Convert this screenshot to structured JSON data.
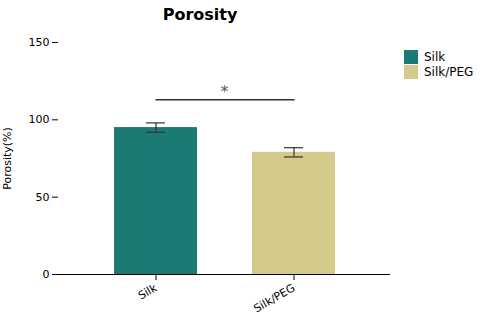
{
  "chart_data": {
    "type": "bar",
    "title": "Porosity",
    "ylabel": "Porosity(%)",
    "categories": [
      "Silk",
      "Silk/PEG"
    ],
    "values": [
      95.0,
      79.0
    ],
    "errors": [
      3.0,
      3.0
    ],
    "colors": [
      "#1b7b74",
      "#d4ca8c"
    ],
    "ylim": [
      0,
      150
    ],
    "yticks": [
      0,
      50,
      100,
      150
    ],
    "grid": false,
    "legend": "right",
    "annotations": [
      {
        "text": "*",
        "y": 113,
        "x": [
          "Silk",
          "Silk/PEG"
        ]
      }
    ]
  }
}
